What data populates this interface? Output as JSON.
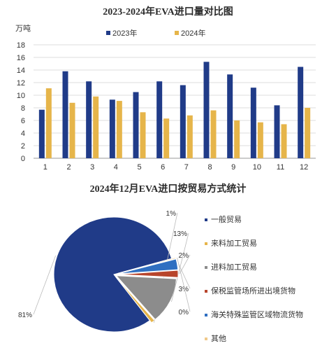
{
  "chart_data": [
    {
      "type": "bar",
      "title": "2023-2024年EVA进口量对比图",
      "ylabel": "万吨",
      "categories": [
        "1",
        "2",
        "3",
        "4",
        "5",
        "6",
        "7",
        "8",
        "9",
        "10",
        "11",
        "12"
      ],
      "series": [
        {
          "name": "2023年",
          "color": "#203b88",
          "values": [
            7.7,
            13.8,
            12.2,
            9.3,
            10.5,
            12.2,
            11.6,
            15.3,
            13.3,
            11.2,
            8.4,
            14.5
          ]
        },
        {
          "name": "2024年",
          "color": "#e6b54a",
          "values": [
            11.1,
            8.8,
            9.8,
            9.1,
            7.3,
            6.3,
            6.8,
            7.6,
            6.0,
            5.7,
            5.4,
            8.0
          ]
        }
      ],
      "ylim": [
        0,
        18
      ],
      "yticks": [
        0,
        2,
        4,
        6,
        8,
        10,
        12,
        14,
        16,
        18
      ],
      "grid": true,
      "legend": "top-center"
    },
    {
      "type": "pie",
      "title": "2024年12月EVA进口按贸易方式统计",
      "slices": [
        {
          "name": "一般贸易",
          "value": 81,
          "label": "81%",
          "color": "#203b88"
        },
        {
          "name": "来料加工贸易",
          "value": 1,
          "label": "1%",
          "color": "#e6b54a"
        },
        {
          "name": "进料加工贸易",
          "value": 13,
          "label": "13%",
          "color": "#8c8c8c"
        },
        {
          "name": "保税监管场所进出境货物",
          "value": 2,
          "label": "2%",
          "color": "#b8452c"
        },
        {
          "name": "海关特殊监管区域物流货物",
          "value": 3,
          "label": "3%",
          "color": "#2f6fc1"
        },
        {
          "name": "其他",
          "value": 0.3,
          "label": "0%",
          "color": "#f0c98a"
        }
      ],
      "legend": "right"
    }
  ]
}
